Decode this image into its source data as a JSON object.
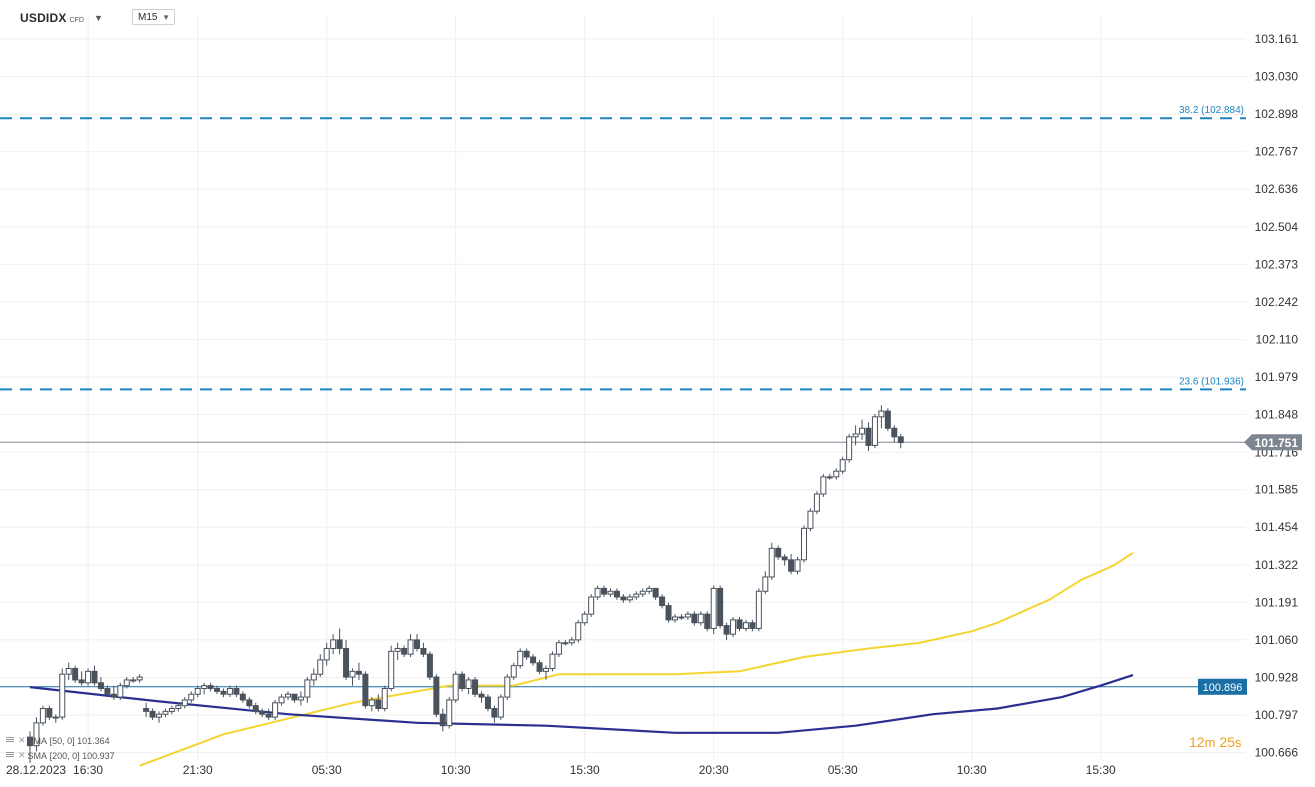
{
  "symbol": "USDIDX",
  "symbol_type": "CFD",
  "timeframe": "M15",
  "indicators": [
    {
      "label": "SMA",
      "params": "[50, 0]",
      "value": "101.364",
      "color": "#f5d432"
    },
    {
      "label": "SMA",
      "params": "[200, 0]",
      "value": "100.937",
      "color": "#2b2f8f"
    }
  ],
  "countdown": {
    "minutes": "12",
    "seconds": "25",
    "m_unit": "m",
    "s_unit": "s"
  },
  "colors": {
    "bull_fill": "#ffffff",
    "bear_fill": "#4a525d",
    "candle_outline": "#4a525d",
    "fib_line": "#1e84c0",
    "price_tag": "#7d868f",
    "level_tag": "#1a6fa5",
    "grid": "#efefef"
  },
  "chart_data": {
    "type": "candlestick",
    "ylim": [
      100.64,
      103.245
    ],
    "y_ticks": [
      "103.161",
      "103.030",
      "102.898",
      "102.767",
      "102.636",
      "102.504",
      "102.373",
      "102.242",
      "102.110",
      "101.979",
      "101.848",
      "101.716",
      "101.585",
      "101.454",
      "101.322",
      "101.191",
      "101.060",
      "100.928",
      "100.797",
      "100.666"
    ],
    "x_labels": [
      {
        "label": "28.12.2023",
        "bar": 0
      },
      {
        "label": "16:30",
        "bar": 9
      },
      {
        "label": "21:30",
        "bar": 26
      },
      {
        "label": "05:30",
        "bar": 46
      },
      {
        "label": "10:30",
        "bar": 66
      },
      {
        "label": "15:30",
        "bar": 86
      },
      {
        "label": "20:30",
        "bar": 106
      },
      {
        "label": "05:30",
        "bar": 126
      },
      {
        "label": "10:30",
        "bar": 146
      },
      {
        "label": "15:30",
        "bar": 166
      }
    ],
    "fib_levels": [
      {
        "label": "38.2 (102.884)",
        "value": 102.884
      },
      {
        "label": "23.6 (101.936)",
        "value": 101.936
      }
    ],
    "current_price": {
      "label": "101.751",
      "value": 101.751
    },
    "level_line": {
      "label": "100.896",
      "value": 100.896
    },
    "ohlc": [
      [
        100.72,
        100.74,
        100.63,
        100.69
      ],
      [
        100.69,
        100.79,
        100.67,
        100.77
      ],
      [
        100.77,
        100.83,
        100.76,
        100.82
      ],
      [
        100.82,
        100.83,
        100.78,
        100.79
      ],
      [
        100.79,
        100.8,
        100.77,
        100.79
      ],
      [
        100.79,
        100.96,
        100.78,
        100.94
      ],
      [
        100.94,
        100.98,
        100.92,
        100.96
      ],
      [
        100.96,
        100.97,
        100.91,
        100.92
      ],
      [
        100.92,
        100.95,
        100.9,
        100.91
      ],
      [
        100.91,
        100.96,
        100.9,
        100.95
      ],
      [
        100.95,
        100.97,
        100.9,
        100.91
      ],
      [
        100.91,
        100.93,
        100.88,
        100.89
      ],
      [
        100.89,
        100.9,
        100.86,
        100.87
      ],
      [
        100.87,
        100.9,
        100.85,
        100.86
      ],
      [
        100.86,
        100.91,
        100.85,
        100.9
      ],
      [
        100.9,
        100.93,
        100.89,
        100.92
      ],
      [
        100.92,
        100.93,
        100.91,
        100.92
      ],
      [
        100.92,
        100.94,
        100.91,
        100.93
      ],
      [
        100.82,
        100.84,
        100.79,
        100.81
      ],
      [
        100.81,
        100.82,
        100.78,
        100.79
      ],
      [
        100.79,
        100.81,
        100.77,
        100.8
      ],
      [
        100.8,
        100.82,
        100.79,
        100.81
      ],
      [
        100.81,
        100.83,
        100.8,
        100.82
      ],
      [
        100.82,
        100.84,
        100.81,
        100.83
      ],
      [
        100.83,
        100.86,
        100.82,
        100.85
      ],
      [
        100.85,
        100.88,
        100.84,
        100.87
      ],
      [
        100.87,
        100.9,
        100.86,
        100.89
      ],
      [
        100.89,
        100.91,
        100.87,
        100.9
      ],
      [
        100.9,
        100.91,
        100.88,
        100.89
      ],
      [
        100.89,
        100.9,
        100.87,
        100.88
      ],
      [
        100.88,
        100.89,
        100.86,
        100.87
      ],
      [
        100.87,
        100.9,
        100.86,
        100.89
      ],
      [
        100.89,
        100.9,
        100.86,
        100.87
      ],
      [
        100.87,
        100.88,
        100.84,
        100.85
      ],
      [
        100.85,
        100.86,
        100.82,
        100.83
      ],
      [
        100.83,
        100.84,
        100.8,
        100.81
      ],
      [
        100.81,
        100.82,
        100.79,
        100.8
      ],
      [
        100.8,
        100.82,
        100.78,
        100.79
      ],
      [
        100.79,
        100.85,
        100.78,
        100.84
      ],
      [
        100.84,
        100.87,
        100.83,
        100.86
      ],
      [
        100.86,
        100.88,
        100.85,
        100.87
      ],
      [
        100.87,
        100.87,
        100.84,
        100.85
      ],
      [
        100.85,
        100.88,
        100.83,
        100.86
      ],
      [
        100.86,
        100.93,
        100.84,
        100.92
      ],
      [
        100.92,
        100.96,
        100.9,
        100.94
      ],
      [
        100.94,
        101.01,
        100.93,
        100.99
      ],
      [
        100.99,
        101.05,
        100.97,
        101.03
      ],
      [
        101.03,
        101.08,
        101.01,
        101.06
      ],
      [
        101.06,
        101.1,
        101.01,
        101.03
      ],
      [
        101.03,
        101.06,
        100.92,
        100.93
      ],
      [
        100.93,
        100.96,
        100.9,
        100.95
      ],
      [
        100.95,
        100.98,
        100.92,
        100.94
      ],
      [
        100.94,
        100.95,
        100.82,
        100.83
      ],
      [
        100.83,
        100.86,
        100.81,
        100.85
      ],
      [
        100.85,
        100.87,
        100.81,
        100.82
      ],
      [
        100.82,
        100.9,
        100.81,
        100.89
      ],
      [
        100.89,
        101.04,
        100.88,
        101.02
      ],
      [
        101.02,
        101.05,
        100.99,
        101.03
      ],
      [
        101.03,
        101.04,
        101.0,
        101.01
      ],
      [
        101.01,
        101.08,
        101.0,
        101.06
      ],
      [
        101.06,
        101.08,
        101.02,
        101.03
      ],
      [
        101.03,
        101.05,
        101.0,
        101.01
      ],
      [
        101.01,
        101.02,
        100.92,
        100.93
      ],
      [
        100.93,
        100.94,
        100.79,
        100.8
      ],
      [
        100.8,
        100.82,
        100.74,
        100.76
      ],
      [
        100.76,
        100.86,
        100.75,
        100.85
      ],
      [
        100.85,
        100.95,
        100.84,
        100.94
      ],
      [
        100.94,
        100.95,
        100.88,
        100.89
      ],
      [
        100.89,
        100.93,
        100.87,
        100.92
      ],
      [
        100.92,
        100.93,
        100.86,
        100.87
      ],
      [
        100.87,
        100.88,
        100.84,
        100.86
      ],
      [
        100.86,
        100.87,
        100.81,
        100.82
      ],
      [
        100.82,
        100.83,
        100.77,
        100.79
      ],
      [
        100.79,
        100.87,
        100.78,
        100.86
      ],
      [
        100.86,
        100.94,
        100.85,
        100.93
      ],
      [
        100.93,
        100.98,
        100.92,
        100.97
      ],
      [
        100.97,
        101.03,
        100.96,
        101.02
      ],
      [
        101.02,
        101.03,
        100.99,
        101.0
      ],
      [
        101.0,
        101.01,
        100.97,
        100.98
      ],
      [
        100.98,
        100.99,
        100.94,
        100.95
      ],
      [
        100.95,
        100.97,
        100.92,
        100.96
      ],
      [
        100.96,
        101.02,
        100.95,
        101.01
      ],
      [
        101.01,
        101.06,
        101.0,
        101.05
      ],
      [
        101.05,
        101.06,
        101.04,
        101.05
      ],
      [
        101.05,
        101.07,
        101.04,
        101.06
      ],
      [
        101.06,
        101.13,
        101.05,
        101.12
      ],
      [
        101.12,
        101.16,
        101.11,
        101.15
      ],
      [
        101.15,
        101.22,
        101.14,
        101.21
      ],
      [
        101.21,
        101.25,
        101.2,
        101.24
      ],
      [
        101.24,
        101.25,
        101.21,
        101.22
      ],
      [
        101.22,
        101.24,
        101.21,
        101.23
      ],
      [
        101.23,
        101.24,
        101.2,
        101.21
      ],
      [
        101.21,
        101.22,
        101.19,
        101.2
      ],
      [
        101.2,
        101.22,
        101.19,
        101.21
      ],
      [
        101.21,
        101.23,
        101.2,
        101.22
      ],
      [
        101.22,
        101.24,
        101.21,
        101.23
      ],
      [
        101.23,
        101.25,
        101.22,
        101.24
      ],
      [
        101.24,
        101.24,
        101.2,
        101.21
      ],
      [
        101.21,
        101.22,
        101.17,
        101.18
      ],
      [
        101.18,
        101.19,
        101.12,
        101.13
      ],
      [
        101.13,
        101.15,
        101.12,
        101.14
      ],
      [
        101.14,
        101.15,
        101.13,
        101.14
      ],
      [
        101.14,
        101.16,
        101.13,
        101.15
      ],
      [
        101.15,
        101.16,
        101.11,
        101.12
      ],
      [
        101.12,
        101.16,
        101.11,
        101.15
      ],
      [
        101.15,
        101.16,
        101.09,
        101.1
      ],
      [
        101.1,
        101.25,
        101.08,
        101.24
      ],
      [
        101.24,
        101.25,
        101.1,
        101.11
      ],
      [
        101.11,
        101.12,
        101.06,
        101.08
      ],
      [
        101.08,
        101.14,
        101.07,
        101.13
      ],
      [
        101.13,
        101.14,
        101.09,
        101.1
      ],
      [
        101.1,
        101.13,
        101.09,
        101.12
      ],
      [
        101.12,
        101.13,
        101.09,
        101.1
      ],
      [
        101.1,
        101.24,
        101.09,
        101.23
      ],
      [
        101.23,
        101.3,
        101.22,
        101.28
      ],
      [
        101.28,
        101.4,
        101.27,
        101.38
      ],
      [
        101.38,
        101.39,
        101.34,
        101.35
      ],
      [
        101.35,
        101.36,
        101.32,
        101.34
      ],
      [
        101.34,
        101.36,
        101.29,
        101.3
      ],
      [
        101.3,
        101.35,
        101.29,
        101.34
      ],
      [
        101.34,
        101.46,
        101.33,
        101.45
      ],
      [
        101.45,
        101.52,
        101.44,
        101.51
      ],
      [
        101.51,
        101.58,
        101.5,
        101.57
      ],
      [
        101.57,
        101.64,
        101.56,
        101.63
      ],
      [
        101.63,
        101.64,
        101.62,
        101.63
      ],
      [
        101.63,
        101.66,
        101.62,
        101.65
      ],
      [
        101.65,
        101.7,
        101.64,
        101.69
      ],
      [
        101.69,
        101.78,
        101.68,
        101.77
      ],
      [
        101.77,
        101.81,
        101.74,
        101.78
      ],
      [
        101.78,
        101.83,
        101.76,
        101.8
      ],
      [
        101.8,
        101.82,
        101.72,
        101.74
      ],
      [
        101.74,
        101.85,
        101.73,
        101.84
      ],
      [
        101.84,
        101.88,
        101.8,
        101.86
      ],
      [
        101.86,
        101.87,
        101.79,
        101.8
      ],
      [
        101.8,
        101.81,
        101.75,
        101.77
      ],
      [
        101.77,
        101.78,
        101.73,
        101.75
      ]
    ],
    "sma50": [
      [
        17,
        100.62
      ],
      [
        30,
        100.73
      ],
      [
        50,
        100.84
      ],
      [
        65,
        100.9
      ],
      [
        75,
        100.9
      ],
      [
        82,
        100.94
      ],
      [
        100,
        100.94
      ],
      [
        110,
        100.95
      ],
      [
        120,
        101.0
      ],
      [
        130,
        101.03
      ],
      [
        138,
        101.05
      ],
      [
        146,
        101.09
      ],
      [
        150,
        101.12
      ],
      [
        158,
        101.2
      ],
      [
        163,
        101.27
      ],
      [
        168,
        101.32
      ],
      [
        171,
        101.364
      ]
    ],
    "sma200": [
      [
        0,
        100.895
      ],
      [
        20,
        100.845
      ],
      [
        40,
        100.8
      ],
      [
        60,
        100.77
      ],
      [
        80,
        100.76
      ],
      [
        100,
        100.735
      ],
      [
        116,
        100.735
      ],
      [
        128,
        100.76
      ],
      [
        140,
        100.8
      ],
      [
        150,
        100.82
      ],
      [
        160,
        100.86
      ],
      [
        166,
        100.9
      ],
      [
        171,
        100.937
      ]
    ]
  }
}
